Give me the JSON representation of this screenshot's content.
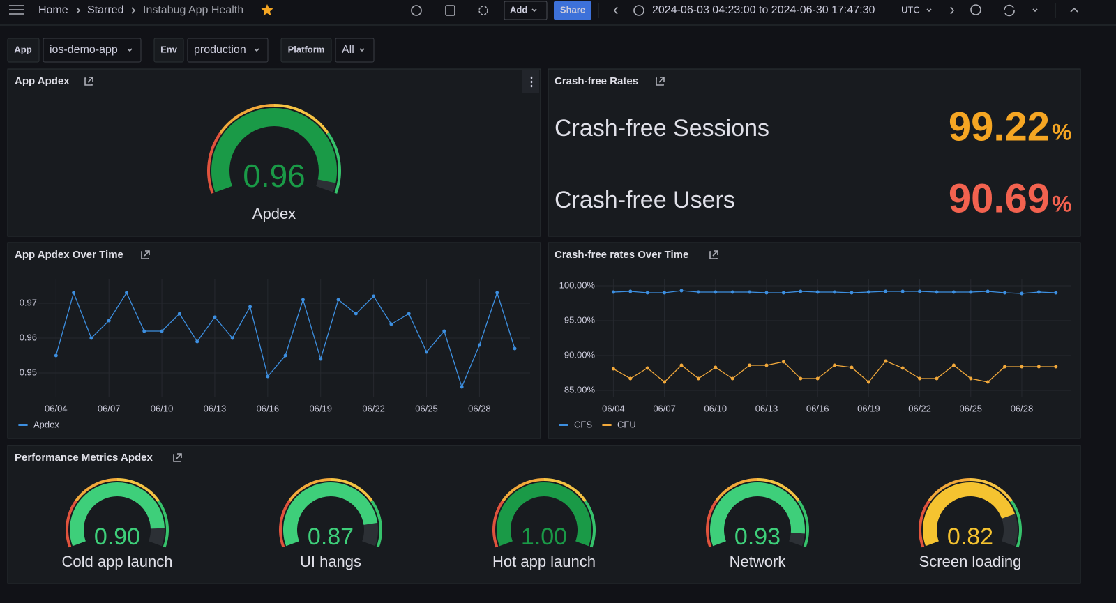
{
  "toolbar": {
    "breadcrumbs": [
      "Home",
      "Starred",
      "Instabug App Health"
    ],
    "add": "Add",
    "share": "Share",
    "time_range": "2024-06-03 04:23:00 to 2024-06-30 17:47:30",
    "timezone": "UTC"
  },
  "variables": [
    {
      "label": "App",
      "value": "ios-demo-app"
    },
    {
      "label": "Env",
      "value": "production"
    },
    {
      "label": "Platform",
      "value": "All"
    }
  ],
  "chart_data": [
    {
      "type": "gauge",
      "title": "App Apdex",
      "categories": [
        "Apdex"
      ],
      "values": [
        0.96
      ],
      "colors": [
        "#1a9a47"
      ],
      "ylim": [
        0,
        1
      ],
      "threshold_colors": [
        "#e0533d",
        "#f2a93b",
        "#f5c343",
        "#36c26b"
      ]
    },
    {
      "type": "stat",
      "title": "Crash-free Rates",
      "categories": [
        "Crash-free Sessions",
        "Crash-free Users"
      ],
      "values": [
        99.22,
        90.69
      ],
      "unit": "%",
      "colors": [
        "#f5a623",
        "#f2624f"
      ]
    },
    {
      "type": "line",
      "title": "App Apdex Over Time",
      "x": [
        4,
        5,
        6,
        7,
        8,
        9,
        10,
        11,
        12,
        13,
        14,
        15,
        16,
        17,
        18,
        19,
        20,
        21,
        22,
        23,
        24,
        25,
        26,
        27,
        28,
        29,
        30
      ],
      "xlim": [
        3,
        30.87
      ],
      "xticks": [
        {
          "value": 4,
          "label": "06/04"
        },
        {
          "value": 7,
          "label": "06/07"
        },
        {
          "value": 10,
          "label": "06/10"
        },
        {
          "value": 13,
          "label": "06/13"
        },
        {
          "value": 16,
          "label": "06/16"
        },
        {
          "value": 19,
          "label": "06/19"
        },
        {
          "value": 22,
          "label": "06/22"
        },
        {
          "value": 25,
          "label": "06/25"
        },
        {
          "value": 28,
          "label": "06/28"
        }
      ],
      "ylim": [
        0.943,
        0.977
      ],
      "yticks": [
        0.95,
        0.96,
        0.97
      ],
      "grid": true,
      "legend": "bottom-left",
      "series": [
        {
          "name": "Apdex",
          "color": "#3d8fe0",
          "values": [
            0.955,
            0.973,
            0.96,
            0.965,
            0.973,
            0.962,
            0.962,
            0.967,
            0.959,
            0.966,
            0.96,
            0.969,
            0.949,
            0.955,
            0.971,
            0.954,
            0.971,
            0.967,
            0.972,
            0.964,
            0.967,
            0.956,
            0.962,
            0.946,
            0.958,
            0.973,
            0.957
          ]
        }
      ]
    },
    {
      "type": "line",
      "title": "Crash-free rates Over Time",
      "x": [
        4,
        5,
        6,
        7,
        8,
        9,
        10,
        11,
        12,
        13,
        14,
        15,
        16,
        17,
        18,
        19,
        20,
        21,
        22,
        23,
        24,
        25,
        26,
        27,
        28,
        29,
        30
      ],
      "xlim": [
        3,
        30.87
      ],
      "xticks": [
        {
          "value": 4,
          "label": "06/04"
        },
        {
          "value": 7,
          "label": "06/07"
        },
        {
          "value": 10,
          "label": "06/10"
        },
        {
          "value": 13,
          "label": "06/13"
        },
        {
          "value": 16,
          "label": "06/16"
        },
        {
          "value": 19,
          "label": "06/19"
        },
        {
          "value": 22,
          "label": "06/22"
        },
        {
          "value": 25,
          "label": "06/25"
        },
        {
          "value": 28,
          "label": "06/28"
        }
      ],
      "ylim": [
        84,
        101
      ],
      "yticks": [
        {
          "value": 85,
          "label": "85.00%"
        },
        {
          "value": 90,
          "label": "90.00%"
        },
        {
          "value": 95,
          "label": "95.00%"
        },
        {
          "value": 100,
          "label": "100.00%"
        }
      ],
      "grid": true,
      "legend": "bottom-left",
      "series": [
        {
          "name": "CFS",
          "color": "#3d8fe0",
          "values": [
            99.1,
            99.2,
            99.0,
            99.0,
            99.3,
            99.1,
            99.1,
            99.1,
            99.1,
            99.0,
            99.0,
            99.2,
            99.1,
            99.1,
            99.0,
            99.1,
            99.2,
            99.2,
            99.2,
            99.1,
            99.1,
            99.1,
            99.2,
            99.0,
            98.9,
            99.1,
            99.0
          ]
        },
        {
          "name": "CFU",
          "color": "#f2a93b",
          "values": [
            88.1,
            86.7,
            88.2,
            86.2,
            88.6,
            86.7,
            88.3,
            86.7,
            88.6,
            88.6,
            89.1,
            86.7,
            86.7,
            88.6,
            88.3,
            86.2,
            89.2,
            88.2,
            86.7,
            86.7,
            88.6,
            86.7,
            86.2,
            88.4,
            88.4,
            88.4,
            88.4
          ]
        }
      ]
    },
    {
      "type": "gauge",
      "title": "Performance Metrics Apdex",
      "categories": [
        "Cold app launch",
        "UI hangs",
        "Hot app launch",
        "Network",
        "Screen loading"
      ],
      "values": [
        0.9,
        0.87,
        1,
        0.93,
        0.82
      ],
      "value_labels": [
        "0.90",
        "0.87",
        "1.00",
        "0.93",
        "0.82"
      ],
      "colors": [
        "#3ecf7a",
        "#3ecf7a",
        "#1a9a47",
        "#3ecf7a",
        "#f5c330"
      ],
      "ylim": [
        0,
        1
      ],
      "threshold_colors": [
        "#e0533d",
        "#f2a93b",
        "#f5c343",
        "#36c26b"
      ]
    }
  ]
}
